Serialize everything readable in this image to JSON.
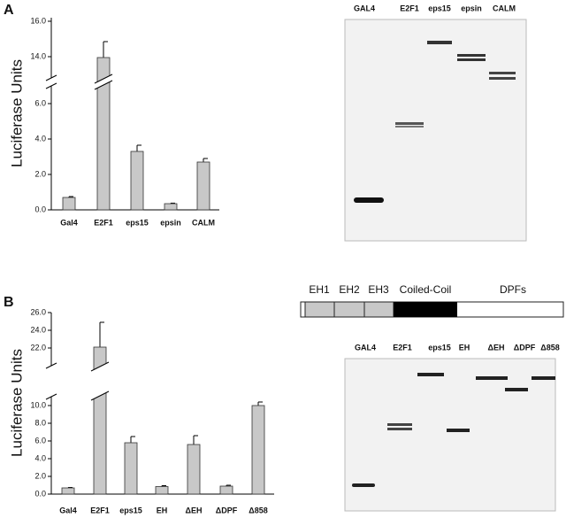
{
  "panel_labels": [
    "A",
    "B"
  ],
  "chart_data": [
    {
      "type": "bar",
      "y_label": "Luciferase Units",
      "categories": [
        "Gal4",
        "E2F1",
        "eps15",
        "epsin",
        "CALM"
      ],
      "values": [
        0.7,
        13.95,
        3.3,
        0.35,
        2.7
      ],
      "errors": [
        0.05,
        0.9,
        0.35,
        0.03,
        0.2
      ],
      "color": "#c8c8c8",
      "ylim": [
        0,
        16.2
      ],
      "ybreak": [
        7.0,
        12.8
      ],
      "yticks": [
        {
          "value": 0,
          "label": "0.0"
        },
        {
          "value": 2,
          "label": "2.0"
        },
        {
          "value": 4,
          "label": "4.0"
        },
        {
          "value": 6,
          "label": "6.0"
        },
        {
          "value": 14,
          "label": "14.0"
        },
        {
          "value": 16,
          "label": "16.0"
        }
      ]
    },
    {
      "type": "bar",
      "y_label": "Luciferase Units",
      "categories": [
        "Gal4",
        "E2F1",
        "eps15",
        "EH",
        "ΔEH",
        "ΔDPF",
        "Δ858"
      ],
      "values": [
        0.7,
        22.1,
        5.8,
        0.85,
        5.6,
        0.9,
        10.0
      ],
      "errors": [
        0.05,
        2.8,
        0.7,
        0.1,
        1.0,
        0.1,
        0.4
      ],
      "color": "#c8c8c8",
      "ylim": [
        0,
        26
      ],
      "ybreak": [
        11,
        20
      ],
      "yticks": [
        {
          "value": 0,
          "label": "0.0"
        },
        {
          "value": 2,
          "label": "2.0"
        },
        {
          "value": 4,
          "label": "4.0"
        },
        {
          "value": 6,
          "label": "6.0"
        },
        {
          "value": 8,
          "label": "8.0"
        },
        {
          "value": 10,
          "label": "10.0"
        },
        {
          "value": 22,
          "label": "22.0"
        },
        {
          "value": 24,
          "label": "24.0"
        },
        {
          "value": 26,
          "label": "26.0"
        }
      ]
    }
  ],
  "gels": [
    {
      "lanes": [
        "GAL4",
        "E2F1",
        "eps15",
        "epsin",
        "CALM"
      ]
    },
    {
      "lanes": [
        "GAL4",
        "E2F1",
        "eps15",
        "EH",
        "ΔEH",
        "ΔDPF",
        "Δ858"
      ]
    }
  ],
  "domain_map": {
    "labels": [
      "EH1",
      "EH2",
      "EH3",
      "Coiled-Coil",
      "DPFs"
    ]
  }
}
